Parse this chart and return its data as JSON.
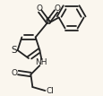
{
  "bg_color": "#faf6ee",
  "bond_color": "#222222",
  "line_width": 1.3,
  "figsize": [
    1.16,
    1.07
  ],
  "dpi": 100,
  "xlim": [
    0,
    116
  ],
  "ylim": [
    0,
    107
  ]
}
